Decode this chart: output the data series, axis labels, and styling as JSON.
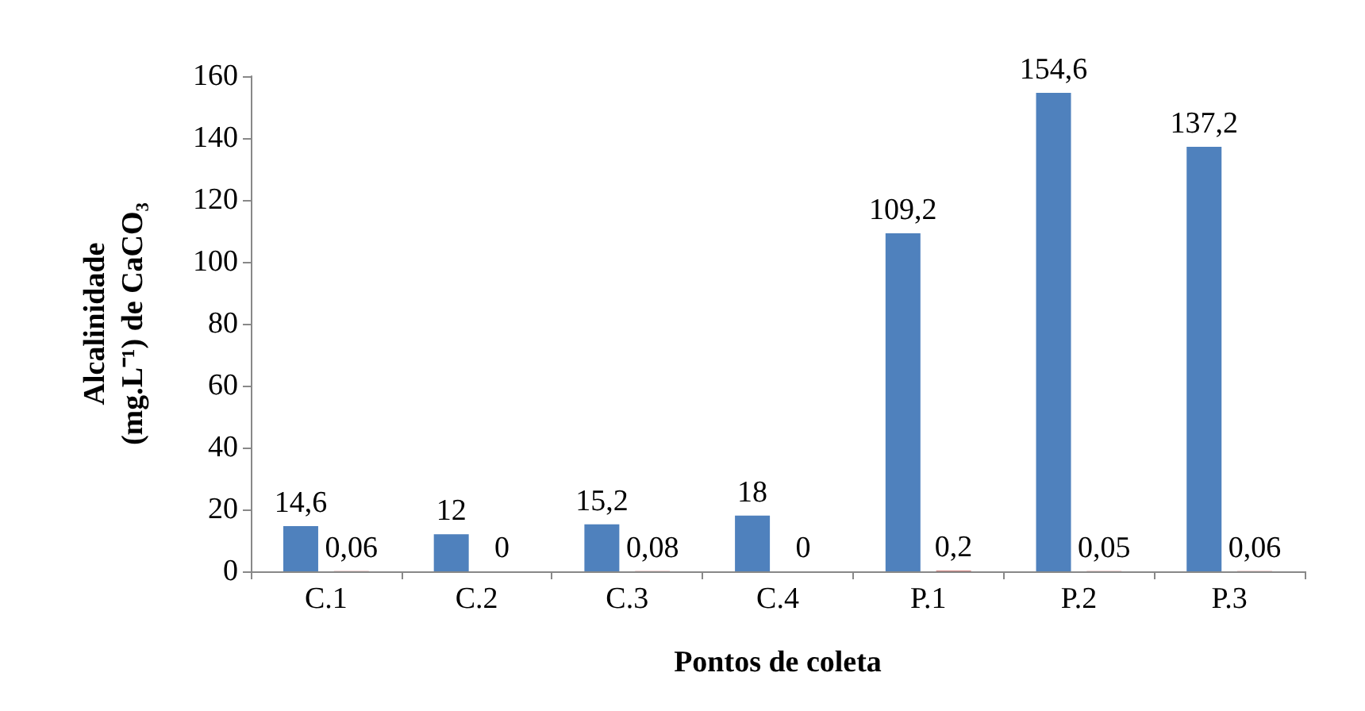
{
  "chart_data": {
    "type": "bar",
    "xlabel": "Pontos de coleta",
    "ylabel": "Alcalinidade\n(mg.L⁻¹) de CaCO₃",
    "categories": [
      "C.1",
      "C.2",
      "C.3",
      "C.4",
      "P.1",
      "P.2",
      "P.3"
    ],
    "series": [
      {
        "color": "#4f81bd",
        "values": [
          14.6,
          12,
          15.2,
          18,
          109.2,
          154.6,
          137.2
        ],
        "value_labels": [
          "14,6",
          "12",
          "15,2",
          "18",
          "109,2",
          "154,6",
          "137,2"
        ]
      },
      {
        "color": "#c0504d",
        "values": [
          0.06,
          0,
          0.08,
          0,
          0.2,
          0.05,
          0.06
        ],
        "value_labels": [
          "0,06",
          "0",
          "0,08",
          "0",
          "0,2",
          "0,05",
          "0,06"
        ]
      }
    ],
    "ylim": [
      0,
      160
    ],
    "yticks": [
      0,
      20,
      40,
      60,
      80,
      100,
      120,
      140,
      160
    ],
    "grid": false
  }
}
